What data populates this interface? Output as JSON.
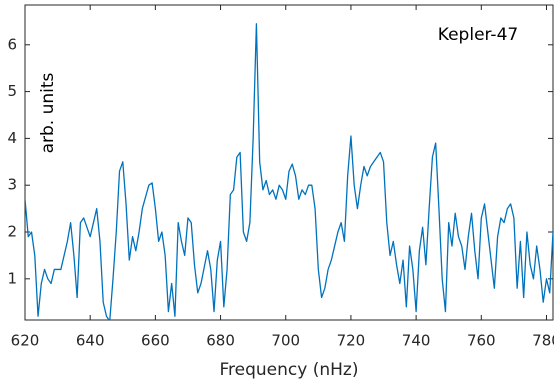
{
  "chart_data": {
    "type": "line",
    "xlabel": "Frequency (nHz)",
    "ylabel": "arb. units",
    "annotation": "Kepler-47",
    "x": [
      620,
      621,
      622,
      623,
      624,
      625,
      626,
      627,
      628,
      629,
      631,
      633,
      634,
      635,
      636,
      637,
      638,
      640,
      642,
      643,
      644,
      645,
      646,
      647,
      648,
      649,
      650,
      651,
      652,
      653,
      654,
      655,
      656,
      658,
      659,
      660,
      661,
      662,
      663,
      664,
      665,
      666,
      667,
      668,
      669,
      670,
      671,
      672,
      673,
      674,
      676,
      677,
      678,
      679,
      680,
      681,
      682,
      683,
      684,
      685,
      686,
      687,
      688,
      689,
      690,
      691,
      692,
      693,
      694,
      695,
      696,
      697,
      698,
      699,
      700,
      701,
      702,
      703,
      704,
      705,
      706,
      707,
      708,
      709,
      710,
      711,
      712,
      713,
      714,
      715,
      716,
      717,
      718,
      719,
      720,
      721,
      722,
      723,
      724,
      725,
      726,
      727,
      728,
      729,
      730,
      731,
      732,
      733,
      734,
      735,
      736,
      737,
      738,
      739,
      740,
      741,
      742,
      743,
      744,
      745,
      746,
      747,
      748,
      749,
      750,
      751,
      752,
      753,
      754,
      755,
      756,
      757,
      758,
      759,
      760,
      761,
      762,
      763,
      764,
      765,
      766,
      767,
      768,
      769,
      770,
      771,
      772,
      773,
      774,
      775,
      776,
      777,
      778,
      779,
      780,
      781,
      782
    ],
    "series": [
      {
        "color": "#0072bd",
        "values": [
          2.7,
          1.9,
          2.0,
          1.5,
          0.2,
          0.9,
          1.2,
          1.0,
          0.9,
          1.2,
          1.2,
          1.8,
          2.2,
          1.5,
          0.6,
          2.2,
          2.3,
          1.9,
          2.5,
          1.8,
          0.5,
          0.2,
          0.1,
          1.0,
          2.0,
          3.3,
          3.5,
          2.6,
          1.4,
          1.9,
          1.6,
          2.0,
          2.5,
          3.0,
          3.05,
          2.5,
          1.8,
          2.0,
          1.5,
          0.3,
          0.9,
          0.2,
          2.2,
          1.8,
          1.5,
          2.3,
          2.2,
          1.3,
          0.7,
          0.9,
          1.6,
          1.2,
          0.3,
          1.4,
          1.8,
          0.4,
          1.2,
          2.8,
          2.9,
          3.6,
          3.7,
          2.0,
          1.8,
          2.2,
          4.0,
          6.45,
          3.5,
          2.9,
          3.1,
          2.8,
          2.9,
          2.7,
          3.0,
          2.9,
          2.7,
          3.3,
          3.45,
          3.2,
          2.7,
          2.9,
          2.8,
          3.0,
          3.0,
          2.5,
          1.2,
          0.6,
          0.8,
          1.2,
          1.4,
          1.7,
          2.0,
          2.2,
          1.8,
          3.2,
          4.05,
          3.0,
          2.5,
          3.0,
          3.4,
          3.2,
          3.4,
          3.5,
          3.6,
          3.7,
          3.5,
          2.2,
          1.5,
          1.8,
          1.3,
          0.9,
          1.4,
          0.4,
          1.7,
          1.2,
          0.3,
          1.6,
          2.1,
          1.3,
          2.5,
          3.6,
          3.9,
          2.5,
          1.0,
          0.3,
          2.2,
          1.7,
          2.4,
          1.9,
          1.7,
          1.2,
          1.9,
          2.4,
          1.6,
          1.0,
          2.3,
          2.6,
          2.0,
          1.4,
          0.8,
          1.9,
          2.3,
          2.2,
          2.5,
          2.6,
          2.3,
          0.8,
          1.8,
          0.6,
          2.0,
          1.3,
          1.0,
          1.7,
          1.2,
          0.5,
          1.0,
          0.7,
          2.0
        ]
      }
    ],
    "xlim": [
      620,
      782
    ],
    "ylim": [
      0.12,
      6.85
    ],
    "xticks": [
      620,
      640,
      660,
      680,
      700,
      720,
      740,
      760,
      780
    ],
    "yticks": [
      1,
      2,
      3,
      4,
      5,
      6
    ]
  }
}
